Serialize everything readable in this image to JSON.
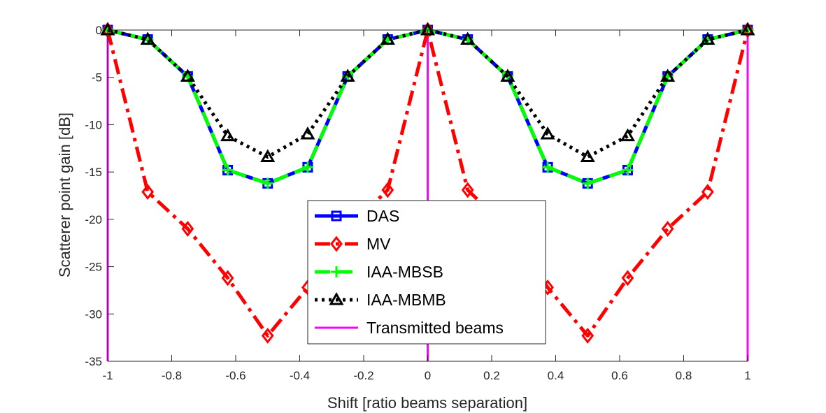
{
  "chart_data": {
    "type": "line",
    "title": "",
    "xlabel": "Shift [ratio beams separation]",
    "ylabel": "Scatterer point gain [dB]",
    "xlim": [
      -1,
      1
    ],
    "ylim": [
      -35,
      0
    ],
    "xticks": [
      -1,
      -0.8,
      -0.6,
      -0.4,
      -0.2,
      0,
      0.2,
      0.4,
      0.6,
      0.8,
      1
    ],
    "xtick_labels": [
      "-1",
      "-0.8",
      "-0.6",
      "-0.4",
      "-0.2",
      "0",
      "0.2",
      "0.4",
      "0.6",
      "0.8",
      "1"
    ],
    "yticks": [
      0,
      -5,
      -10,
      -15,
      -20,
      -25,
      -30,
      -35
    ],
    "ytick_labels": [
      "0",
      "-5",
      "-10",
      "-15",
      "-20",
      "-25",
      "-30",
      "-35"
    ],
    "grid": false,
    "legend_position": "bottom-center",
    "x": [
      -1,
      -0.875,
      -0.75,
      -0.625,
      -0.5,
      -0.375,
      -0.25,
      -0.125,
      0,
      0.125,
      0.25,
      0.375,
      0.5,
      0.625,
      0.75,
      0.875,
      1
    ],
    "series": [
      {
        "name": "DAS",
        "color": "#0000ff",
        "line_style": "solid",
        "marker": "square",
        "values": [
          0,
          -1,
          -4.9,
          -14.8,
          -16.2,
          -14.5,
          -4.9,
          -1,
          0,
          -1,
          -4.9,
          -14.5,
          -16.2,
          -14.8,
          -4.9,
          -1,
          0
        ]
      },
      {
        "name": "MV",
        "color": "#ff0000",
        "line_style": "dash-dot",
        "marker": "diamond",
        "values": [
          0,
          -17.1,
          -21,
          -26.2,
          -32.3,
          -27.2,
          -21,
          -16.9,
          0,
          -16.9,
          -21,
          -27.2,
          -32.3,
          -26.2,
          -21,
          -17.1,
          0
        ]
      },
      {
        "name": "IAA-MBSB",
        "color": "#00ff00",
        "line_style": "dashed",
        "marker": "plus",
        "values": [
          0,
          -1,
          -4.9,
          -14.8,
          -16.2,
          -14.5,
          -4.9,
          -1,
          0,
          -1,
          -4.9,
          -14.5,
          -16.2,
          -14.8,
          -4.9,
          -1,
          0
        ]
      },
      {
        "name": "IAA-MBMB",
        "color": "#000000",
        "line_style": "dotted",
        "marker": "triangle",
        "values": [
          0,
          -1,
          -4.9,
          -11.2,
          -13.4,
          -11,
          -4.9,
          -1,
          0,
          -1,
          -4.9,
          -11,
          -13.4,
          -11.2,
          -4.9,
          -1,
          0
        ]
      }
    ],
    "vertical_lines": {
      "name": "Transmitted beams",
      "color": "#ff00ff",
      "x": [
        -1,
        0,
        1
      ]
    }
  }
}
